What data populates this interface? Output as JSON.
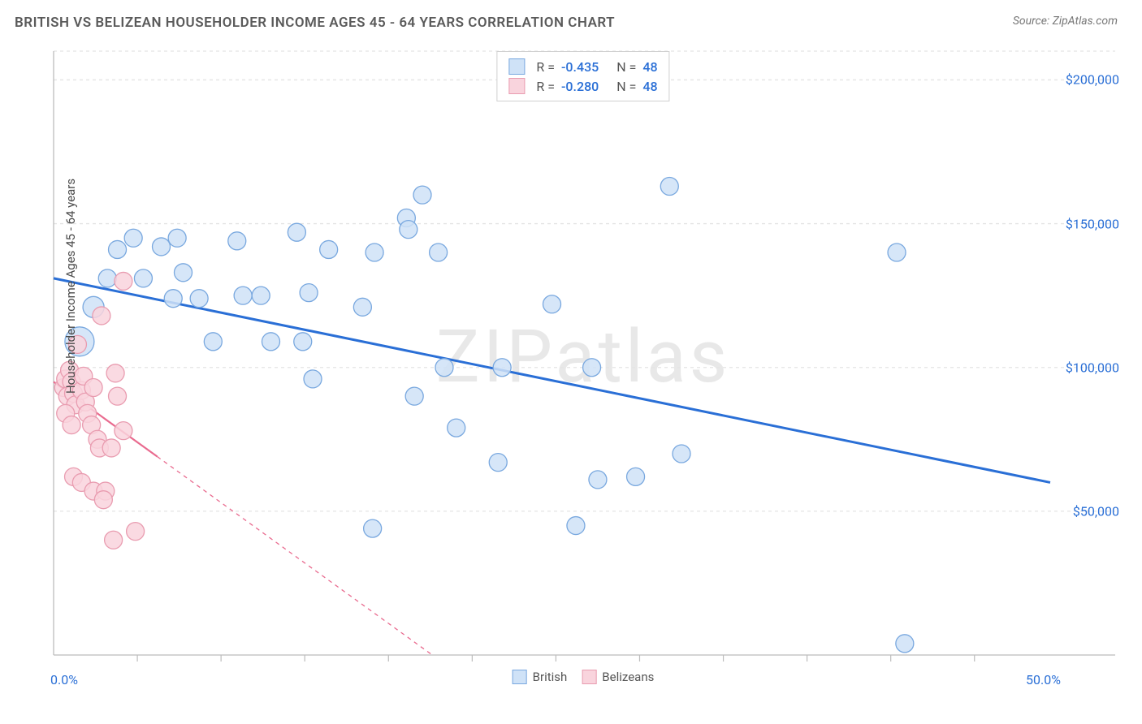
{
  "header": {
    "title": "BRITISH VS BELIZEAN HOUSEHOLDER INCOME AGES 45 - 64 YEARS CORRELATION CHART",
    "source": "Source: ZipAtlas.com"
  },
  "watermark": "ZIPatlas",
  "chart": {
    "type": "scatter",
    "y_label": "Householder Income Ages 45 - 64 years",
    "xlim": [
      0,
      50
    ],
    "ylim": [
      0,
      210000
    ],
    "x_ticks": [
      0,
      50
    ],
    "x_tick_labels": [
      "0.0%",
      "50.0%"
    ],
    "x_minor_ticks": [
      4.2,
      8.4,
      12.6,
      16.8,
      21.0,
      25.2,
      29.4,
      33.6,
      37.8,
      42.0,
      46.2
    ],
    "y_ticks": [
      50000,
      100000,
      150000,
      200000
    ],
    "y_tick_labels": [
      "$50,000",
      "$100,000",
      "$150,000",
      "$200,000"
    ],
    "background_color": "#ffffff",
    "grid_color": "#e4e4e4",
    "grid_dash": "4,4",
    "axis_color": "#bcbcbc",
    "tick_label_color": "#2a6fd6",
    "tick_fontsize": 16,
    "label_color": "#4a4a4a",
    "label_fontsize": 15,
    "marker_radius": 11,
    "marker_stroke_width": 1.3,
    "series": [
      {
        "name": "British",
        "fill": "#cfe2f7",
        "stroke": "#79a8df",
        "trend_color": "#2a6fd6",
        "trend_width": 3,
        "trend_dash": "none",
        "R": "-0.435",
        "N": "48",
        "trend": {
          "x1": 0,
          "y1": 131000,
          "x2": 50,
          "y2": 60000
        },
        "points": [
          {
            "x": 1.3,
            "y": 109000,
            "r": 18
          },
          {
            "x": 2.0,
            "y": 121000,
            "r": 13
          },
          {
            "x": 2.7,
            "y": 131000
          },
          {
            "x": 3.2,
            "y": 141000
          },
          {
            "x": 4.0,
            "y": 145000
          },
          {
            "x": 4.5,
            "y": 131000
          },
          {
            "x": 5.4,
            "y": 142000
          },
          {
            "x": 6.2,
            "y": 145000
          },
          {
            "x": 6.0,
            "y": 124000
          },
          {
            "x": 6.5,
            "y": 133000
          },
          {
            "x": 7.3,
            "y": 124000
          },
          {
            "x": 8.0,
            "y": 109000
          },
          {
            "x": 9.2,
            "y": 144000
          },
          {
            "x": 9.5,
            "y": 125000
          },
          {
            "x": 10.4,
            "y": 125000
          },
          {
            "x": 10.9,
            "y": 109000
          },
          {
            "x": 12.2,
            "y": 147000
          },
          {
            "x": 12.8,
            "y": 126000
          },
          {
            "x": 12.5,
            "y": 109000
          },
          {
            "x": 13.0,
            "y": 96000
          },
          {
            "x": 13.8,
            "y": 141000
          },
          {
            "x": 15.5,
            "y": 121000
          },
          {
            "x": 16.1,
            "y": 140000
          },
          {
            "x": 16.0,
            "y": 44000
          },
          {
            "x": 17.7,
            "y": 152000
          },
          {
            "x": 17.8,
            "y": 148000
          },
          {
            "x": 18.5,
            "y": 160000
          },
          {
            "x": 18.1,
            "y": 90000
          },
          {
            "x": 19.3,
            "y": 140000
          },
          {
            "x": 19.6,
            "y": 100000
          },
          {
            "x": 20.2,
            "y": 79000
          },
          {
            "x": 22.3,
            "y": 67000
          },
          {
            "x": 22.5,
            "y": 100000
          },
          {
            "x": 25.0,
            "y": 122000
          },
          {
            "x": 26.2,
            "y": 45000
          },
          {
            "x": 27.3,
            "y": 61000
          },
          {
            "x": 27.0,
            "y": 100000
          },
          {
            "x": 29.2,
            "y": 62000
          },
          {
            "x": 30.9,
            "y": 163000
          },
          {
            "x": 31.5,
            "y": 70000
          },
          {
            "x": 42.3,
            "y": 140000
          },
          {
            "x": 42.7,
            "y": 4000
          }
        ]
      },
      {
        "name": "Belizeans",
        "fill": "#f9d4dd",
        "stroke": "#e99cb0",
        "trend_color": "#e96b8f",
        "trend_width": 2.2,
        "trend_dash": "5,5",
        "R": "-0.280",
        "N": "48",
        "trend": {
          "x1": 0,
          "y1": 95000,
          "x2": 19,
          "y2": 0
        },
        "trend_solid_until_x": 5.2,
        "points": [
          {
            "x": 0.5,
            "y": 93000
          },
          {
            "x": 0.6,
            "y": 96000
          },
          {
            "x": 0.8,
            "y": 99000
          },
          {
            "x": 0.9,
            "y": 95000
          },
          {
            "x": 0.7,
            "y": 90000
          },
          {
            "x": 1.0,
            "y": 91000
          },
          {
            "x": 1.1,
            "y": 87000
          },
          {
            "x": 0.6,
            "y": 84000
          },
          {
            "x": 0.9,
            "y": 80000
          },
          {
            "x": 1.2,
            "y": 108000
          },
          {
            "x": 1.4,
            "y": 92000
          },
          {
            "x": 1.5,
            "y": 97000
          },
          {
            "x": 1.6,
            "y": 88000
          },
          {
            "x": 1.7,
            "y": 84000
          },
          {
            "x": 1.9,
            "y": 80000
          },
          {
            "x": 2.0,
            "y": 93000
          },
          {
            "x": 2.2,
            "y": 75000
          },
          {
            "x": 2.3,
            "y": 72000
          },
          {
            "x": 1.0,
            "y": 62000
          },
          {
            "x": 1.4,
            "y": 60000
          },
          {
            "x": 2.0,
            "y": 57000
          },
          {
            "x": 2.6,
            "y": 57000
          },
          {
            "x": 2.9,
            "y": 72000
          },
          {
            "x": 3.2,
            "y": 90000
          },
          {
            "x": 3.5,
            "y": 78000
          },
          {
            "x": 2.4,
            "y": 118000
          },
          {
            "x": 3.1,
            "y": 98000
          },
          {
            "x": 3.5,
            "y": 130000
          },
          {
            "x": 4.1,
            "y": 43000
          },
          {
            "x": 2.5,
            "y": 54000
          },
          {
            "x": 3.0,
            "y": 40000
          }
        ]
      }
    ]
  },
  "legend_bottom": {
    "items": [
      {
        "label": "British",
        "fill": "#cfe2f7",
        "stroke": "#79a8df"
      },
      {
        "label": "Belizeans",
        "fill": "#f9d4dd",
        "stroke": "#e99cb0"
      }
    ]
  },
  "legend_top": {
    "R_label": "R =",
    "N_label": "N ="
  }
}
